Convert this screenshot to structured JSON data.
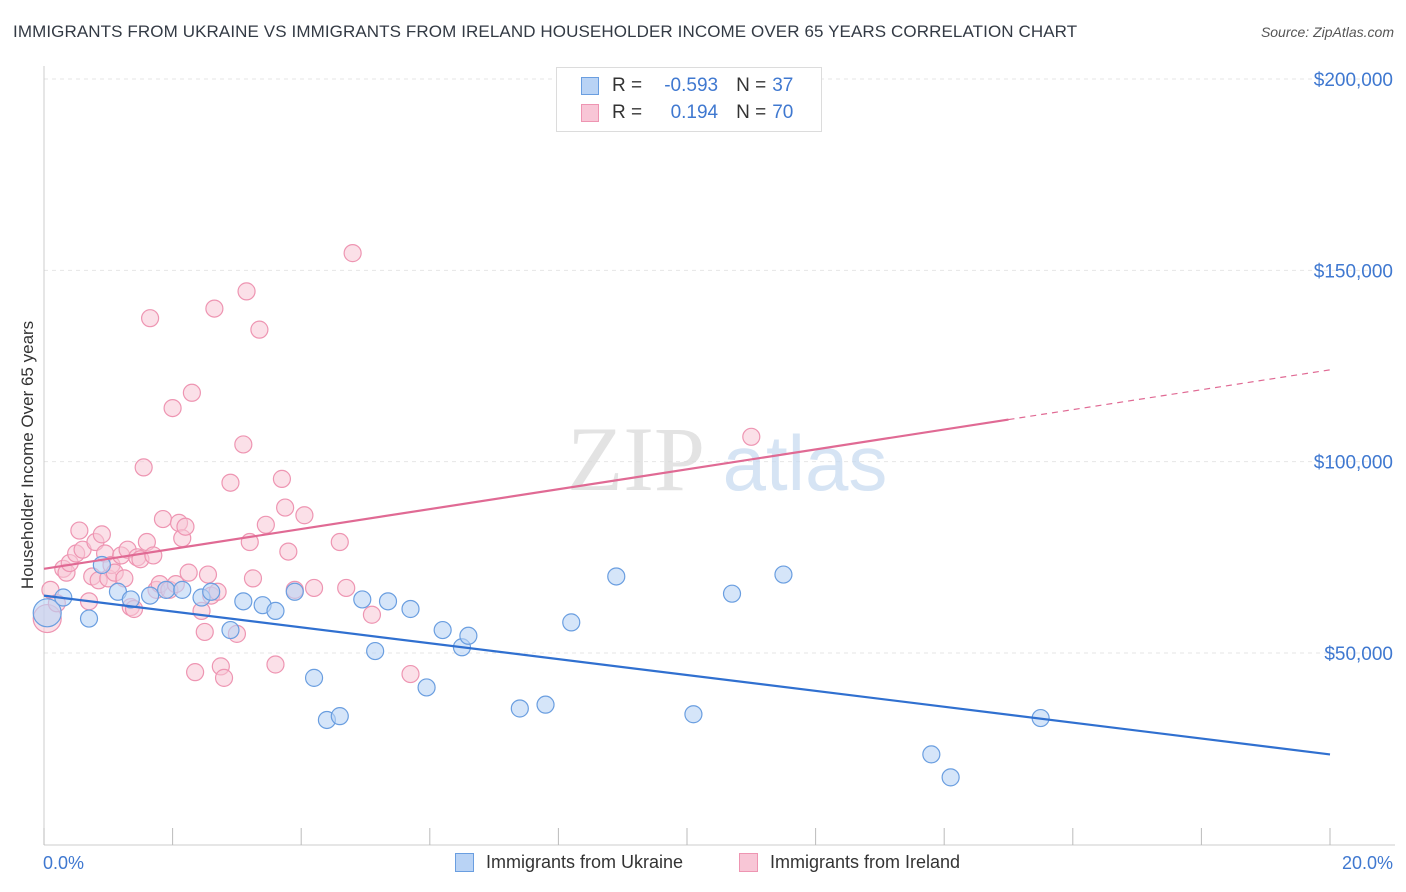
{
  "title": "IMMIGRANTS FROM UKRAINE VS IMMIGRANTS FROM IRELAND HOUSEHOLDER INCOME OVER 65 YEARS CORRELATION CHART",
  "source": "Source: ZipAtlas.com",
  "watermark": {
    "zip": "ZIP",
    "atlas": "atlas"
  },
  "legend_top": {
    "rows": [
      {
        "r_label": "R =",
        "r_value": "-0.593",
        "n_label": "N =",
        "n_value": "37"
      },
      {
        "r_label": "R =",
        "r_value": "0.194",
        "n_label": "N =",
        "n_value": "70"
      }
    ]
  },
  "legend_bottom": {
    "items": [
      "Immigrants from Ukraine",
      "Immigrants from Ireland"
    ]
  },
  "colors": {
    "ukraine_fill": "#b9d3f5",
    "ukraine_stroke": "#6a9ee0",
    "ukraine_line": "#3070d0",
    "ireland_fill": "#f8c6d6",
    "ireland_stroke": "#ee95b2",
    "ireland_line": "#e06a94",
    "tick_label": "#3f78d0",
    "grid": "#e6e6e6"
  },
  "chart_data": {
    "type": "scatter",
    "title": "IMMIGRANTS FROM UKRAINE VS IMMIGRANTS FROM IRELAND HOUSEHOLDER INCOME OVER 65 YEARS CORRELATION CHART",
    "xlabel": "",
    "ylabel": "Householder Income Over 65 years",
    "x_tick_labels": [
      "0.0%",
      "20.0%"
    ],
    "y_tick_labels": [
      "$50,000",
      "$100,000",
      "$150,000",
      "$200,000"
    ],
    "y_ticks": [
      50000,
      100000,
      150000,
      200000
    ],
    "xlim": [
      0,
      20.5
    ],
    "ylim": [
      5000,
      205000
    ],
    "grid": true,
    "legend_placement": "top-center",
    "series": [
      {
        "name": "Immigrants from Ukraine",
        "r": -0.593,
        "n": 37,
        "trend": {
          "x": [
            0,
            20
          ],
          "y": [
            65000,
            23500
          ]
        },
        "points": [
          [
            0.05,
            60500
          ],
          [
            0.3,
            64500
          ],
          [
            0.7,
            59000
          ],
          [
            0.9,
            73000
          ],
          [
            1.15,
            66000
          ],
          [
            1.35,
            64000
          ],
          [
            1.65,
            65000
          ],
          [
            1.9,
            66500
          ],
          [
            2.15,
            66500
          ],
          [
            2.45,
            64500
          ],
          [
            2.6,
            66000
          ],
          [
            2.9,
            56000
          ],
          [
            3.1,
            63500
          ],
          [
            3.4,
            62500
          ],
          [
            3.6,
            61000
          ],
          [
            3.9,
            66000
          ],
          [
            4.2,
            43500
          ],
          [
            4.4,
            32500
          ],
          [
            4.6,
            33500
          ],
          [
            4.95,
            64000
          ],
          [
            5.15,
            50500
          ],
          [
            5.35,
            63500
          ],
          [
            5.7,
            61500
          ],
          [
            5.95,
            41000
          ],
          [
            6.2,
            56000
          ],
          [
            6.5,
            51500
          ],
          [
            6.6,
            54500
          ],
          [
            7.4,
            35500
          ],
          [
            7.8,
            36500
          ],
          [
            8.2,
            58000
          ],
          [
            8.9,
            70000
          ],
          [
            10.1,
            34000
          ],
          [
            10.7,
            65500
          ],
          [
            11.5,
            70500
          ],
          [
            13.8,
            23500
          ],
          [
            14.1,
            17500
          ],
          [
            15.5,
            33000
          ]
        ]
      },
      {
        "name": "Immigrants from Ireland",
        "r": 0.194,
        "n": 70,
        "trend": {
          "x": [
            0,
            15
          ],
          "y": [
            72000,
            111000
          ]
        },
        "trend_dashed": {
          "x": [
            15,
            20
          ],
          "y": [
            111000,
            124000
          ]
        },
        "points": [
          [
            0.05,
            59000
          ],
          [
            0.1,
            66500
          ],
          [
            0.2,
            63000
          ],
          [
            0.3,
            72000
          ],
          [
            0.35,
            71000
          ],
          [
            0.4,
            73500
          ],
          [
            0.5,
            76000
          ],
          [
            0.55,
            82000
          ],
          [
            0.6,
            77000
          ],
          [
            0.7,
            63500
          ],
          [
            0.75,
            70000
          ],
          [
            0.8,
            79000
          ],
          [
            0.85,
            69000
          ],
          [
            0.9,
            81000
          ],
          [
            0.95,
            76000
          ],
          [
            1.0,
            69500
          ],
          [
            1.05,
            73000
          ],
          [
            1.1,
            71000
          ],
          [
            1.2,
            75500
          ],
          [
            1.25,
            69500
          ],
          [
            1.3,
            77000
          ],
          [
            1.35,
            62000
          ],
          [
            1.4,
            61500
          ],
          [
            1.45,
            75000
          ],
          [
            1.5,
            74500
          ],
          [
            1.55,
            98500
          ],
          [
            1.6,
            79000
          ],
          [
            1.65,
            137500
          ],
          [
            1.7,
            75500
          ],
          [
            1.75,
            66500
          ],
          [
            1.8,
            68000
          ],
          [
            1.85,
            85000
          ],
          [
            1.95,
            66500
          ],
          [
            2.0,
            114000
          ],
          [
            2.05,
            68000
          ],
          [
            2.1,
            84000
          ],
          [
            2.15,
            80000
          ],
          [
            2.2,
            83000
          ],
          [
            2.25,
            71000
          ],
          [
            2.3,
            118000
          ],
          [
            2.35,
            45000
          ],
          [
            2.45,
            61000
          ],
          [
            2.5,
            55500
          ],
          [
            2.55,
            70500
          ],
          [
            2.6,
            65000
          ],
          [
            2.65,
            140000
          ],
          [
            2.7,
            66000
          ],
          [
            2.75,
            46500
          ],
          [
            2.8,
            43500
          ],
          [
            2.9,
            94500
          ],
          [
            3.0,
            55000
          ],
          [
            3.1,
            104500
          ],
          [
            3.15,
            144500
          ],
          [
            3.2,
            79000
          ],
          [
            3.25,
            69500
          ],
          [
            3.35,
            134500
          ],
          [
            3.45,
            83500
          ],
          [
            3.6,
            47000
          ],
          [
            3.7,
            95500
          ],
          [
            3.75,
            88000
          ],
          [
            3.8,
            76500
          ],
          [
            3.9,
            66500
          ],
          [
            4.05,
            86000
          ],
          [
            4.2,
            67000
          ],
          [
            4.6,
            79000
          ],
          [
            4.7,
            67000
          ],
          [
            4.8,
            154500
          ],
          [
            5.1,
            60000
          ],
          [
            5.7,
            44500
          ],
          [
            11.0,
            106500
          ]
        ]
      }
    ]
  }
}
